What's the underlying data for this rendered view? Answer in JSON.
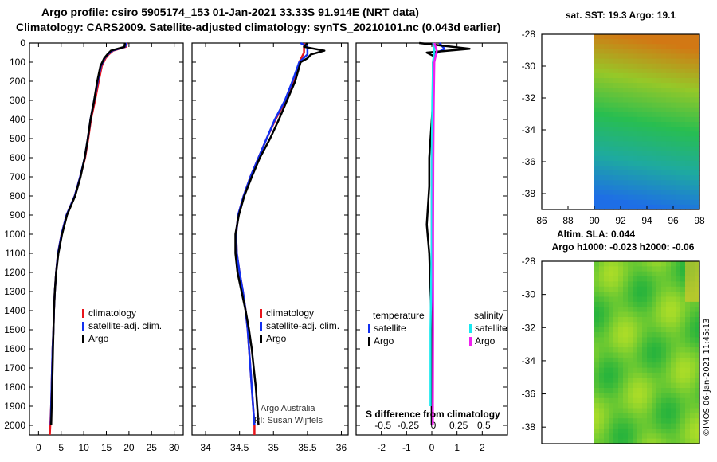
{
  "header": {
    "title_line1": "Argo profile: csiro 5905174_153 01-Jan-2021 33.33S 91.914E (NRT data)",
    "title_line2": "Climatology: CARS2009. Satellite-adjusted climatology: synTS_20210101.nc (0.043d earlier)"
  },
  "credit": "©IMOS 06-Jan-2021 11:45:13",
  "colors": {
    "climatology": "#e8141b",
    "satellite": "#1230f0",
    "argo": "#000000",
    "sat_salinity": "#18e8f0",
    "argo_salinity": "#f020f0"
  },
  "chart_data": [
    {
      "type": "line",
      "name": "temperature",
      "ylim": [
        0,
        2050
      ],
      "y_inverted": true,
      "yticks": [
        0,
        100,
        200,
        300,
        400,
        500,
        600,
        700,
        800,
        900,
        1000,
        1100,
        1200,
        1300,
        1400,
        1500,
        1600,
        1700,
        1800,
        1900,
        2000
      ],
      "xlim": [
        -2,
        32
      ],
      "xticks": [
        0,
        5,
        10,
        15,
        20,
        25,
        30
      ],
      "legend": [
        "climatology",
        "satellite-adj. clim.",
        "Argo"
      ],
      "legend_position": "bottom-right",
      "series": [
        {
          "name": "climatology",
          "color": "#e8141b",
          "points": [
            [
              19.6,
              0
            ],
            [
              19.3,
              20
            ],
            [
              16.5,
              40
            ],
            [
              15.5,
              60
            ],
            [
              14.8,
              80
            ],
            [
              14,
              120
            ],
            [
              13.3,
              200
            ],
            [
              12.5,
              300
            ],
            [
              11.6,
              400
            ],
            [
              11,
              500
            ],
            [
              10.3,
              600
            ],
            [
              9.2,
              700
            ],
            [
              8,
              800
            ],
            [
              6.2,
              900
            ],
            [
              5.1,
              1000
            ],
            [
              4.3,
              1100
            ],
            [
              3.9,
              1200
            ],
            [
              3.6,
              1300
            ],
            [
              3.4,
              1400
            ],
            [
              3.3,
              1500
            ],
            [
              3.1,
              1600
            ],
            [
              3,
              1700
            ],
            [
              2.9,
              1800
            ],
            [
              2.8,
              1900
            ],
            [
              2.6,
              2000
            ],
            [
              2.5,
              2050
            ]
          ]
        },
        {
          "name": "satellite-adj. clim.",
          "color": "#1230f0",
          "points": [
            [
              19.5,
              0
            ],
            [
              19.1,
              20
            ],
            [
              16.3,
              40
            ],
            [
              15.3,
              60
            ],
            [
              14.6,
              80
            ],
            [
              13.8,
              120
            ],
            [
              13.1,
              200
            ],
            [
              12.3,
              300
            ],
            [
              11.5,
              400
            ],
            [
              10.9,
              500
            ],
            [
              10.2,
              600
            ],
            [
              9.2,
              700
            ],
            [
              8,
              800
            ],
            [
              6.2,
              900
            ],
            [
              5.1,
              1000
            ],
            [
              4.3,
              1100
            ],
            [
              3.9,
              1200
            ],
            [
              3.6,
              1300
            ],
            [
              3.4,
              1400
            ],
            [
              3.3,
              1500
            ],
            [
              3.1,
              1600
            ],
            [
              3,
              1700
            ],
            [
              2.9,
              1800
            ],
            [
              2.8,
              1900
            ],
            [
              2.7,
              2000
            ]
          ]
        },
        {
          "name": "Argo",
          "color": "#000000",
          "points": [
            [
              19.1,
              0
            ],
            [
              19,
              20
            ],
            [
              16,
              40
            ],
            [
              15.2,
              60
            ],
            [
              14.5,
              80
            ],
            [
              13.7,
              120
            ],
            [
              13,
              200
            ],
            [
              12.3,
              300
            ],
            [
              11.5,
              400
            ],
            [
              10.9,
              500
            ],
            [
              10.2,
              600
            ],
            [
              9.3,
              700
            ],
            [
              8.1,
              800
            ],
            [
              6.3,
              900
            ],
            [
              5.2,
              1000
            ],
            [
              4.4,
              1100
            ],
            [
              3.9,
              1200
            ],
            [
              3.6,
              1300
            ],
            [
              3.4,
              1400
            ],
            [
              3.3,
              1500
            ],
            [
              3.2,
              1600
            ],
            [
              3.1,
              1700
            ],
            [
              3,
              1800
            ],
            [
              2.9,
              1900
            ],
            [
              2.8,
              2000
            ]
          ]
        }
      ]
    },
    {
      "type": "line",
      "name": "salinity",
      "ylim": [
        0,
        2050
      ],
      "y_inverted": true,
      "xlim": [
        33.8,
        36.1
      ],
      "xticks": [
        34,
        34.5,
        35,
        35.5,
        36
      ],
      "legend": [
        "climatology",
        "satellite-adj. clim.",
        "Argo"
      ],
      "legend_position": "bottom-right",
      "annotations": [
        "Argo Australia",
        "PI: Susan Wijffels"
      ],
      "series": [
        {
          "name": "climatology",
          "color": "#e8141b",
          "points": [
            [
              35.45,
              0
            ],
            [
              35.45,
              50
            ],
            [
              35.38,
              100
            ],
            [
              35.3,
              200
            ],
            [
              35.18,
              300
            ],
            [
              35.03,
              400
            ],
            [
              34.9,
              500
            ],
            [
              34.78,
              600
            ],
            [
              34.66,
              700
            ],
            [
              34.56,
              800
            ],
            [
              34.48,
              900
            ],
            [
              34.45,
              1000
            ],
            [
              34.46,
              1100
            ],
            [
              34.5,
              1200
            ],
            [
              34.55,
              1300
            ],
            [
              34.59,
              1400
            ],
            [
              34.62,
              1500
            ],
            [
              34.64,
              1600
            ],
            [
              34.66,
              1700
            ],
            [
              34.68,
              1800
            ],
            [
              34.7,
              1900
            ],
            [
              34.72,
              2000
            ],
            [
              34.72,
              2050
            ]
          ]
        },
        {
          "name": "satellite-adj. clim.",
          "color": "#1230f0",
          "points": [
            [
              35.4,
              0
            ],
            [
              35.5,
              20
            ],
            [
              35.5,
              60
            ],
            [
              35.38,
              100
            ],
            [
              35.28,
              200
            ],
            [
              35.17,
              300
            ],
            [
              35.02,
              400
            ],
            [
              34.9,
              500
            ],
            [
              34.78,
              600
            ],
            [
              34.66,
              700
            ],
            [
              34.56,
              800
            ],
            [
              34.48,
              900
            ],
            [
              34.45,
              1000
            ],
            [
              34.46,
              1100
            ],
            [
              34.5,
              1200
            ],
            [
              34.55,
              1300
            ],
            [
              34.59,
              1400
            ],
            [
              34.62,
              1500
            ],
            [
              34.64,
              1600
            ],
            [
              34.66,
              1700
            ],
            [
              34.68,
              1800
            ],
            [
              34.7,
              1900
            ],
            [
              34.72,
              2000
            ]
          ]
        },
        {
          "name": "Argo",
          "color": "#000000",
          "points": [
            [
              35.5,
              0
            ],
            [
              35.45,
              20
            ],
            [
              35.75,
              40
            ],
            [
              35.55,
              60
            ],
            [
              35.5,
              80
            ],
            [
              35.4,
              100
            ],
            [
              35.32,
              200
            ],
            [
              35.2,
              300
            ],
            [
              35.08,
              400
            ],
            [
              34.95,
              500
            ],
            [
              34.8,
              600
            ],
            [
              34.68,
              700
            ],
            [
              34.57,
              800
            ],
            [
              34.49,
              900
            ],
            [
              34.44,
              1000
            ],
            [
              34.44,
              1100
            ],
            [
              34.47,
              1200
            ],
            [
              34.53,
              1300
            ],
            [
              34.59,
              1400
            ],
            [
              34.64,
              1500
            ],
            [
              34.68,
              1600
            ],
            [
              34.71,
              1700
            ],
            [
              34.74,
              1800
            ],
            [
              34.76,
              1900
            ],
            [
              34.78,
              2000
            ]
          ]
        }
      ]
    },
    {
      "type": "line",
      "name": "difference from climatology",
      "ylim": [
        0,
        2050
      ],
      "y_inverted": true,
      "xlim": [
        -3,
        3
      ],
      "xticks": [
        -2,
        -1,
        0,
        1,
        2
      ],
      "xticks_secondary": [
        -0.5,
        -0.25,
        0,
        0.25,
        0.5
      ],
      "xlabel": "S difference from climatology",
      "legend_groups": {
        "temperature": [
          "satellite",
          "Argo"
        ],
        "salinity": [
          "satellite",
          "Argo"
        ]
      },
      "legend_position": "bottom",
      "series": [
        {
          "name": "temperature satellite",
          "color": "#1230f0",
          "points": [
            [
              0.3,
              0
            ],
            [
              0.5,
              30
            ],
            [
              0.1,
              60
            ],
            [
              0.05,
              100
            ],
            [
              0.05,
              300
            ],
            [
              0,
              600
            ],
            [
              0,
              1000
            ],
            [
              0,
              1500
            ],
            [
              0,
              2000
            ]
          ]
        },
        {
          "name": "temperature Argo",
          "color": "#000000",
          "points": [
            [
              -0.5,
              0
            ],
            [
              1.5,
              30
            ],
            [
              -0.2,
              50
            ],
            [
              0.1,
              70
            ],
            [
              0.05,
              100
            ],
            [
              0.05,
              300
            ],
            [
              -0.1,
              600
            ],
            [
              -0.1,
              750
            ],
            [
              -0.2,
              950
            ],
            [
              -0.1,
              1100
            ],
            [
              -0.05,
              1300
            ],
            [
              0,
              1500
            ],
            [
              0,
              2000
            ]
          ]
        },
        {
          "name": "salinity satellite",
          "color": "#18e8f0",
          "points": [
            [
              0.05,
              0
            ],
            [
              0.1,
              30
            ],
            [
              0.05,
              100
            ],
            [
              0.02,
              300
            ],
            [
              0,
              600
            ],
            [
              0,
              1000
            ],
            [
              -0.05,
              1500
            ],
            [
              -0.05,
              1900
            ]
          ]
        },
        {
          "name": "salinity Argo",
          "color": "#f020f0",
          "points": [
            [
              0.1,
              0
            ],
            [
              0.2,
              40
            ],
            [
              0.1,
              100
            ],
            [
              0.08,
              300
            ],
            [
              0.06,
              600
            ],
            [
              0.05,
              1000
            ],
            [
              0.05,
              1500
            ],
            [
              0.04,
              2000
            ]
          ]
        }
      ]
    },
    {
      "type": "heatmap",
      "name": "sat. SST",
      "title": "sat. SST: 19.3 Argo: 19.1",
      "xlim": [
        86,
        98
      ],
      "xticks": [
        86,
        88,
        90,
        92,
        94,
        96,
        98
      ],
      "ylim": [
        -39,
        -28
      ],
      "yticks": [
        -28,
        -30,
        -32,
        -34,
        -36,
        -38
      ]
    },
    {
      "type": "heatmap",
      "name": "Altim. SLA",
      "title": "Altim. SLA: 0.044",
      "subtitle": "Argo h1000: -0.023 h2000: -0.06",
      "ylim": [
        -39,
        -28
      ],
      "yticks": [
        -28,
        -30,
        -32,
        -34,
        -36,
        -38
      ]
    }
  ]
}
